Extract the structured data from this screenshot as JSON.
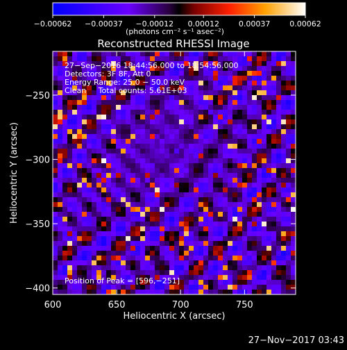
{
  "chart_data": {
    "type": "heatmap",
    "title": "Reconstructed RHESSI Image",
    "xlabel": "Heliocentric X (arcsec)",
    "ylabel": "Heliocentric Y (arcsec)",
    "xlim": [
      600,
      790
    ],
    "ylim": [
      -405,
      -216
    ],
    "x_ticks": [
      600,
      650,
      700,
      750
    ],
    "y_ticks": [
      -250,
      -300,
      -350,
      -400
    ],
    "x_tick_labels": [
      "600",
      "650",
      "700",
      "750"
    ],
    "y_tick_labels": [
      "−250",
      "−300",
      "−350",
      "−400"
    ],
    "colorbar": {
      "min": -0.00062,
      "max": 0.00062,
      "ticks": [
        -0.00062,
        -0.00037,
        -0.00012,
        0.00012,
        0.00037,
        0.00062
      ],
      "tick_labels": [
        "−0.00062",
        "−0.00037",
        "−0.00012",
        "0.00012",
        "0.00037",
        "0.00062"
      ],
      "unit_label": "(photons cm⁻² s⁻¹ asec⁻²)"
    },
    "annotations": [
      "27−Sep−2016 18:44:56.000 to 18:54:56.000",
      "Detectors: 3F 8F, Att 0",
      "Energy Range: 25.0 − 50.0 keV",
      "Clean     Total counts: 5.61E+03"
    ],
    "peak_label": "Position of Peak = [596,−251]",
    "footer_timestamp": "27−Nov−2017 03:43"
  }
}
